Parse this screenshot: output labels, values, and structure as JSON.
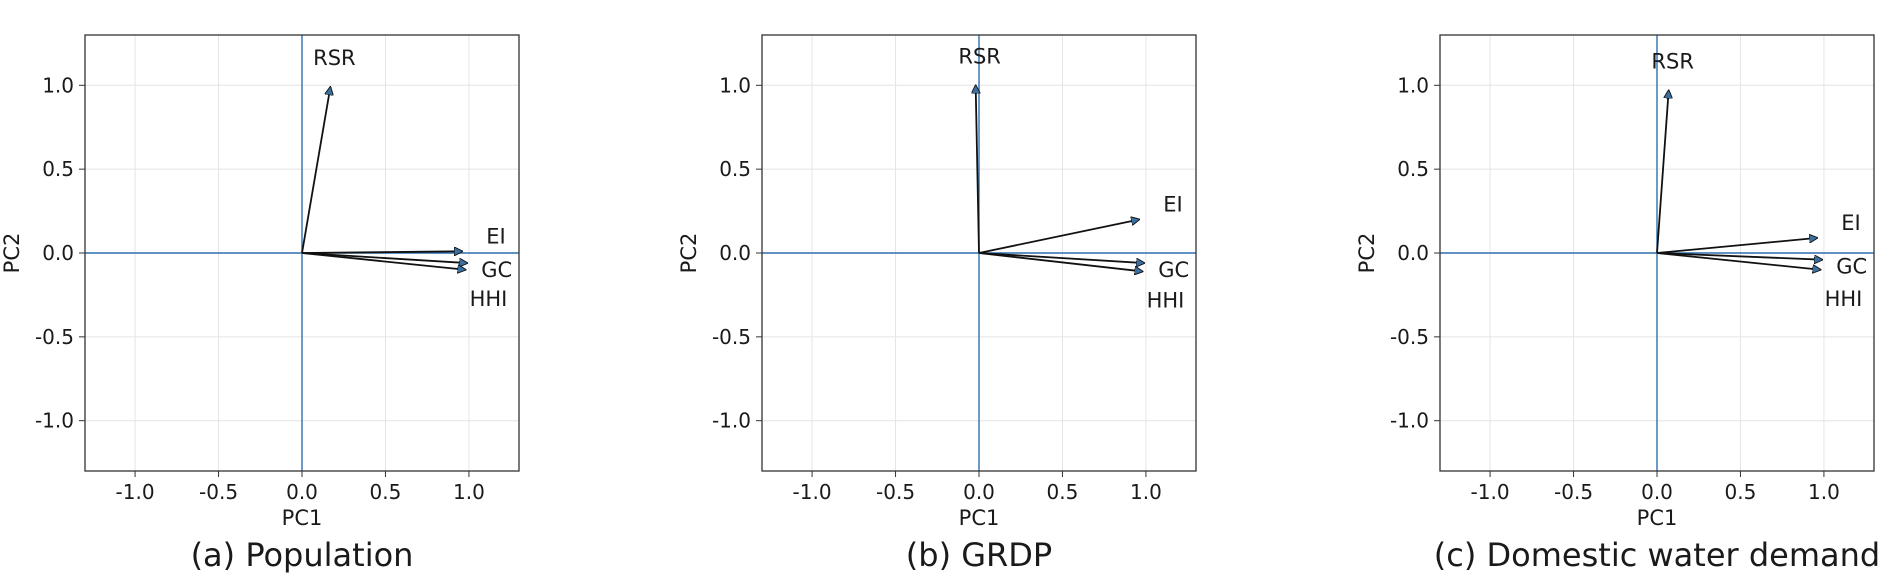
{
  "chart_data": [
    {
      "type": "biplot",
      "caption": "(a) Population",
      "xlabel": "PC1",
      "ylabel": "PC2",
      "xlim": [
        -1.3,
        1.3
      ],
      "ylim": [
        -1.3,
        1.3
      ],
      "xticks": [
        -1.0,
        -0.5,
        0.0,
        0.5,
        1.0
      ],
      "yticks": [
        -1.0,
        -0.5,
        0.0,
        0.5,
        1.0
      ],
      "xtick_labels": [
        "-1.0",
        "-0.5",
        "0.0",
        "0.5",
        "1.0"
      ],
      "ytick_labels": [
        "-1.0",
        "-0.5",
        "0.0",
        "0.5",
        "1.0"
      ],
      "grid": true,
      "vectors": [
        {
          "name": "RSR",
          "x": 0.17,
          "y": 0.99
        },
        {
          "name": "EI",
          "x": 0.96,
          "y": 0.01
        },
        {
          "name": "GC",
          "x": 0.99,
          "y": -0.06
        },
        {
          "name": "HHI",
          "x": 0.98,
          "y": -0.1
        }
      ]
    },
    {
      "type": "biplot",
      "caption": "(b) GRDP",
      "xlabel": "PC1",
      "ylabel": "PC2",
      "xlim": [
        -1.3,
        1.3
      ],
      "ylim": [
        -1.3,
        1.3
      ],
      "xticks": [
        -1.0,
        -0.5,
        0.0,
        0.5,
        1.0
      ],
      "yticks": [
        -1.0,
        -0.5,
        0.0,
        0.5,
        1.0
      ],
      "xtick_labels": [
        "-1.0",
        "-0.5",
        "0.0",
        "0.5",
        "1.0"
      ],
      "ytick_labels": [
        "-1.0",
        "-0.5",
        "0.0",
        "0.5",
        "1.0"
      ],
      "grid": true,
      "vectors": [
        {
          "name": "RSR",
          "x": -0.02,
          "y": 1.0
        },
        {
          "name": "EI",
          "x": 0.96,
          "y": 0.2
        },
        {
          "name": "GC",
          "x": 0.99,
          "y": -0.06
        },
        {
          "name": "HHI",
          "x": 0.98,
          "y": -0.11
        }
      ]
    },
    {
      "type": "biplot",
      "caption": "(c) Domestic water demand",
      "xlabel": "PC1",
      "ylabel": "PC2",
      "xlim": [
        -1.3,
        1.3
      ],
      "ylim": [
        -1.3,
        1.3
      ],
      "xticks": [
        -1.0,
        -0.5,
        0.0,
        0.5,
        1.0
      ],
      "yticks": [
        -1.0,
        -0.5,
        0.0,
        0.5,
        1.0
      ],
      "xtick_labels": [
        "-1.0",
        "-0.5",
        "0.0",
        "0.5",
        "1.0"
      ],
      "ytick_labels": [
        "-1.0",
        "-0.5",
        "0.0",
        "0.5",
        "1.0"
      ],
      "grid": true,
      "vectors": [
        {
          "name": "RSR",
          "x": 0.07,
          "y": 0.97
        },
        {
          "name": "EI",
          "x": 0.96,
          "y": 0.09
        },
        {
          "name": "GC",
          "x": 0.99,
          "y": -0.04
        },
        {
          "name": "HHI",
          "x": 0.98,
          "y": -0.1
        }
      ]
    }
  ],
  "colors": {
    "reference_lines": "#2f6fb0",
    "grid": "#e4e4e4",
    "frame": "#333333",
    "vector": "#111111",
    "arrowhead": "#3a6fa0"
  }
}
